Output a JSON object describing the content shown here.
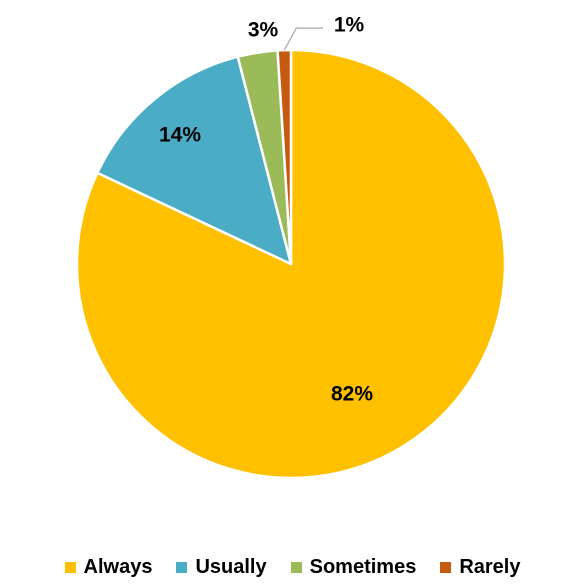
{
  "chart_data": {
    "type": "pie",
    "title": "",
    "categories": [
      "Always",
      "Usually",
      "Sometimes",
      "Rarely"
    ],
    "values": [
      82,
      14,
      3,
      1
    ],
    "labels": [
      "82%",
      "14%",
      "3%",
      "1%"
    ],
    "colors": [
      "#FFC000",
      "#4BACC6",
      "#9BBB59",
      "#C55A11"
    ],
    "legend_position": "bottom",
    "start_angle_deg": 0,
    "direction": "clockwise"
  }
}
